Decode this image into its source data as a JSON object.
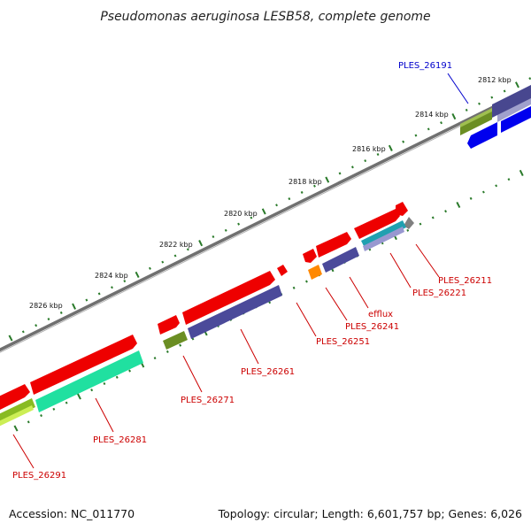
{
  "title": "Pseudomonas aeruginosa LESB58, complete genome",
  "accession": "Accession: NC_011770",
  "topology": "Topology: circular; Length: 6,601,757 bp; Genes: 6,026",
  "colors": {
    "red": "#ee0000",
    "olive": "#6b8e23",
    "indigo": "#4b4a9a",
    "blue": "#0000ee",
    "aqua": "#20d090",
    "lime": "#aadd22",
    "orange": "#ff8800",
    "teal": "#20a0b0",
    "gray": "#808080",
    "tick": "#2a7a2a"
  },
  "tick_labels": [
    "2812 kbp",
    "2814 kbp",
    "2816 kbp",
    "2818 kbp",
    "2820 kbp",
    "2822 kbp",
    "2824 kbp",
    "2826 kbp"
  ],
  "gene_labels": {
    "ples_26191": "PLES_26191",
    "ples_26211": "PLES_26211",
    "ples_26221": "PLES_26221",
    "efflux": "efflux",
    "ples_26241": "PLES_26241",
    "ples_26251": "PLES_26251",
    "ples_26261": "PLES_26261",
    "ples_26271": "PLES_26271",
    "ples_26281": "PLES_26281",
    "ples_26291": "PLES_26291"
  }
}
